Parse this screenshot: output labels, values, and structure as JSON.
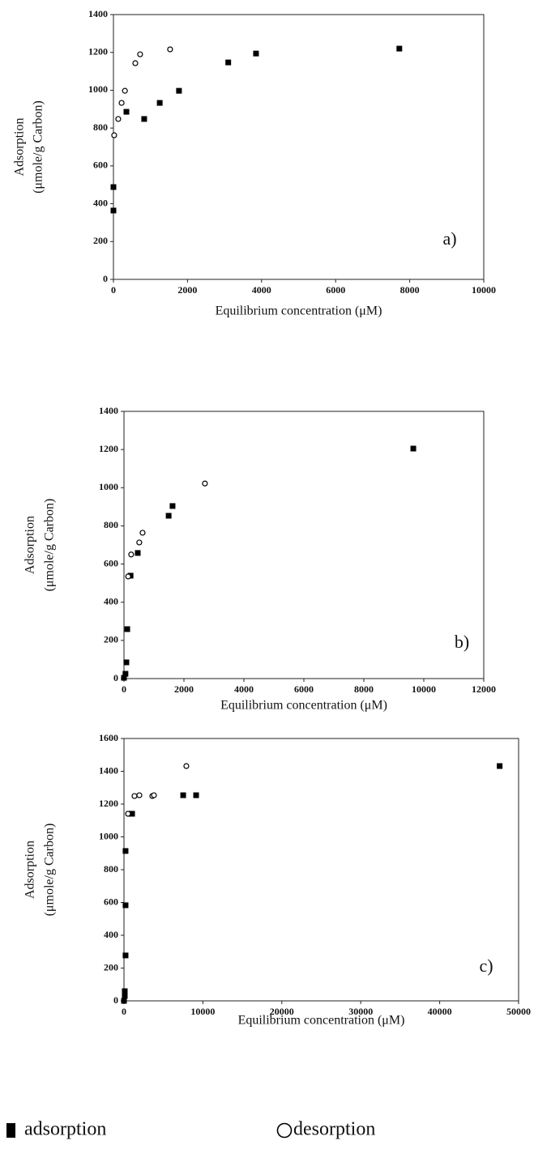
{
  "chart_data": [
    {
      "type": "scatter",
      "annotation": "a)",
      "xlabel": "Equilibrium concentration (μM)",
      "ylabel": [
        "Adsorption",
        "(μmole/g Carbon)"
      ],
      "xlim": [
        0,
        10000
      ],
      "xticks": [
        0,
        2000,
        4000,
        6000,
        8000,
        10000
      ],
      "ylim": [
        0,
        1400
      ],
      "yticks": [
        0,
        200,
        400,
        600,
        800,
        1000,
        1200,
        1400
      ],
      "series": [
        {
          "marker": "square",
          "color": "#000000",
          "x": [
            0,
            0,
            350,
            830,
            1250,
            1770,
            3100,
            3850,
            7720
          ],
          "values": [
            488,
            364,
            886,
            848,
            933,
            997,
            1147,
            1194,
            1220
          ]
        },
        {
          "marker": "circle",
          "color": "#000000",
          "x": [
            20,
            130,
            220,
            310,
            590,
            720,
            1530
          ],
          "values": [
            762,
            848,
            933,
            997,
            1143,
            1190,
            1216
          ]
        }
      ]
    },
    {
      "type": "scatter",
      "annotation": "b)",
      "xlabel": "Equilibrium concentration (μM)",
      "ylabel": [
        "Adsorption",
        "(μmole/g Carbon)"
      ],
      "xlim": [
        0,
        12000
      ],
      "xticks": [
        0,
        2000,
        4000,
        6000,
        8000,
        10000,
        12000
      ],
      "ylim": [
        0,
        1400
      ],
      "yticks": [
        0,
        200,
        400,
        600,
        800,
        1000,
        1200,
        1400
      ],
      "series": [
        {
          "marker": "square",
          "color": "#000000",
          "x": [
            0,
            50,
            80,
            110,
            220,
            460,
            1490,
            1620,
            9650
          ],
          "values": [
            4,
            25,
            85,
            259,
            539,
            658,
            853,
            904,
            1205
          ]
        },
        {
          "marker": "circle",
          "color": "#000000",
          "x": [
            140,
            240,
            510,
            620,
            2700
          ],
          "values": [
            535,
            650,
            713,
            764,
            1022
          ]
        }
      ]
    },
    {
      "type": "scatter",
      "annotation": "c)",
      "xlabel": "Equilibrium concentration (μM)",
      "ylabel": [
        "Adsorption",
        "(μmole/g Carbon)"
      ],
      "xlim": [
        0,
        50000
      ],
      "xticks": [
        0,
        10000,
        20000,
        30000,
        40000,
        50000
      ],
      "ylim": [
        0,
        1600
      ],
      "yticks": [
        0,
        200,
        400,
        600,
        800,
        1000,
        1200,
        1400,
        1600
      ],
      "series": [
        {
          "marker": "square",
          "color": "#000000",
          "x": [
            0,
            100,
            100,
            200,
            200,
            200,
            720,
            1030,
            7500,
            9140,
            47600
          ],
          "values": [
            0,
            30,
            59,
            277,
            583,
            914,
            1141,
            1141,
            1254,
            1254,
            1432
          ]
        },
        {
          "marker": "circle",
          "color": "#000000",
          "x": [
            510,
            1330,
            1950,
            3590,
            3800,
            7900
          ],
          "values": [
            1141,
            1249,
            1254,
            1249,
            1254,
            1432
          ]
        }
      ]
    }
  ],
  "legend": [
    {
      "label": "adsorption",
      "marker": "square"
    },
    {
      "label": "desorption",
      "marker": "circle"
    }
  ]
}
